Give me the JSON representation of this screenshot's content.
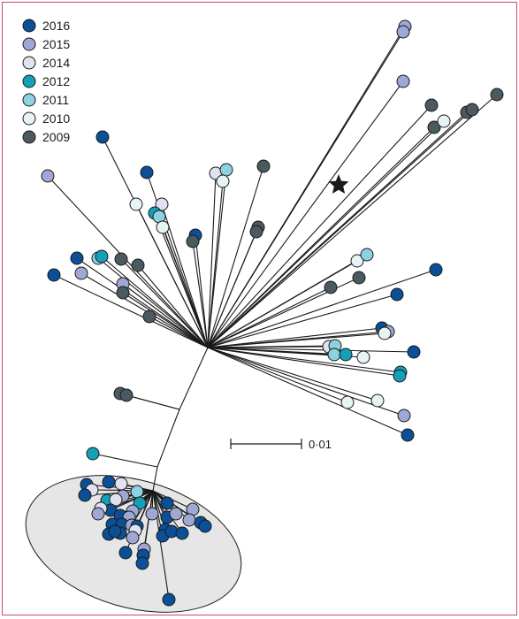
{
  "legend": [
    {
      "year": "2016",
      "color": "#0b4f97"
    },
    {
      "year": "2015",
      "color": "#9fa8d4"
    },
    {
      "year": "2014",
      "color": "#e1e2f0"
    },
    {
      "year": "2012",
      "color": "#13a0b8"
    },
    {
      "year": "2011",
      "color": "#8ed2e2"
    },
    {
      "year": "2010",
      "color": "#e6f4f6"
    },
    {
      "year": "2009",
      "color": "#4a5a60"
    }
  ],
  "scale_bar": {
    "label": "0·01"
  },
  "marker": {
    "icon": "star-icon"
  },
  "colors": {
    "frame": "#c8467a",
    "branch": "#1a1a1a",
    "cluster_fill": "#e6e6e6"
  }
}
